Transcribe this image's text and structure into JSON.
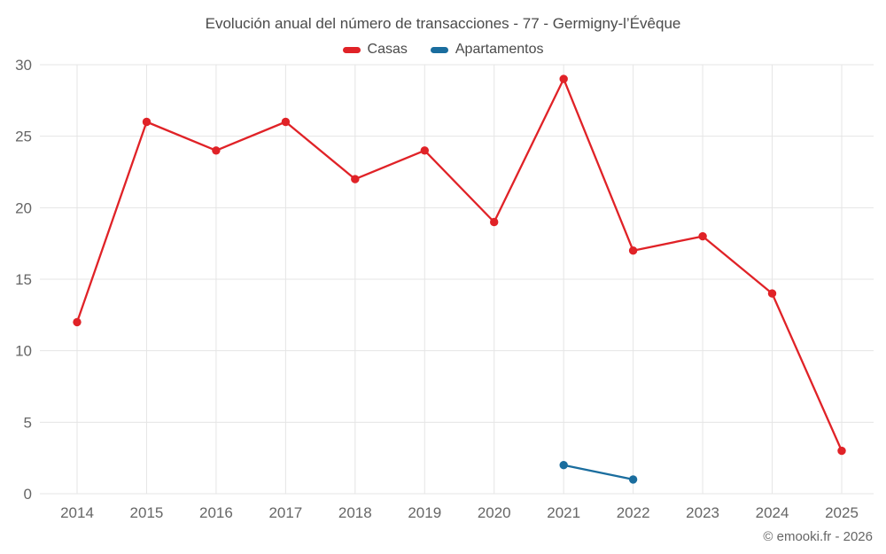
{
  "footer": {
    "copyright": "© emooki.fr - 2026"
  },
  "chart_data": {
    "type": "line",
    "title": "Evolución anual del número de transacciones - 77 - Germigny-l’Évêque",
    "categories": [
      "2014",
      "2015",
      "2016",
      "2017",
      "2018",
      "2019",
      "2020",
      "2021",
      "2022",
      "2023",
      "2024",
      "2025"
    ],
    "series": [
      {
        "name": "Casas",
        "color": "#e02227",
        "values": [
          12,
          26,
          24,
          26,
          22,
          24,
          19,
          29,
          17,
          18,
          14,
          3
        ]
      },
      {
        "name": "Apartamentos",
        "color": "#1a6d9e",
        "values": [
          null,
          null,
          null,
          null,
          null,
          null,
          null,
          2,
          1,
          null,
          null,
          null
        ]
      }
    ],
    "xlabel": "",
    "ylabel": "",
    "ylim": [
      0,
      30
    ],
    "yticks": [
      0,
      5,
      10,
      15,
      20,
      25,
      30
    ],
    "grid": true,
    "legend_position": "top",
    "colors": {
      "grid": "#e5e5e5",
      "tick_text": "#666666",
      "title_text": "#4a4a4a"
    }
  }
}
